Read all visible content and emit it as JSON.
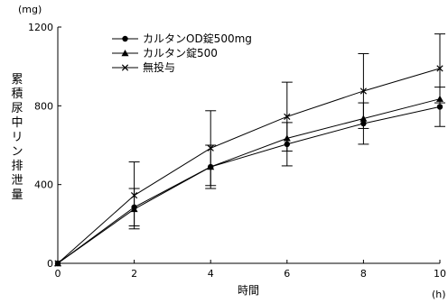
{
  "chart_data": {
    "type": "line",
    "title": "",
    "xlabel": "時間",
    "ylabel": "累積尿中リン排泄量",
    "x_unit": "(h)",
    "y_unit": "(mg)",
    "xlim": [
      0,
      10
    ],
    "ylim": [
      0,
      1200
    ],
    "x_ticks": [
      "0",
      "2",
      "4",
      "6",
      "8",
      "10"
    ],
    "y_ticks": [
      "0",
      "400",
      "800",
      "1200"
    ],
    "x": [
      0,
      2,
      4,
      6,
      8,
      10
    ],
    "grid": false,
    "legend_position": "top-left",
    "series": [
      {
        "name": "カルタンOD錠500mg",
        "marker": "circle",
        "color": "#000000",
        "values": [
          0,
          285,
          490,
          605,
          710,
          795
        ],
        "error": [
          0,
          95,
          110,
          110,
          105,
          100
        ]
      },
      {
        "name": "カルタン錠500",
        "marker": "triangle",
        "color": "#000000",
        "values": [
          0,
          275,
          490,
          635,
          735,
          835
        ],
        "error": [
          0,
          0,
          0,
          0,
          0,
          0
        ]
      },
      {
        "name": "無投与",
        "marker": "x",
        "color": "#000000",
        "values": [
          0,
          345,
          585,
          745,
          875,
          990
        ],
        "error": [
          0,
          170,
          190,
          175,
          190,
          175
        ]
      }
    ]
  }
}
